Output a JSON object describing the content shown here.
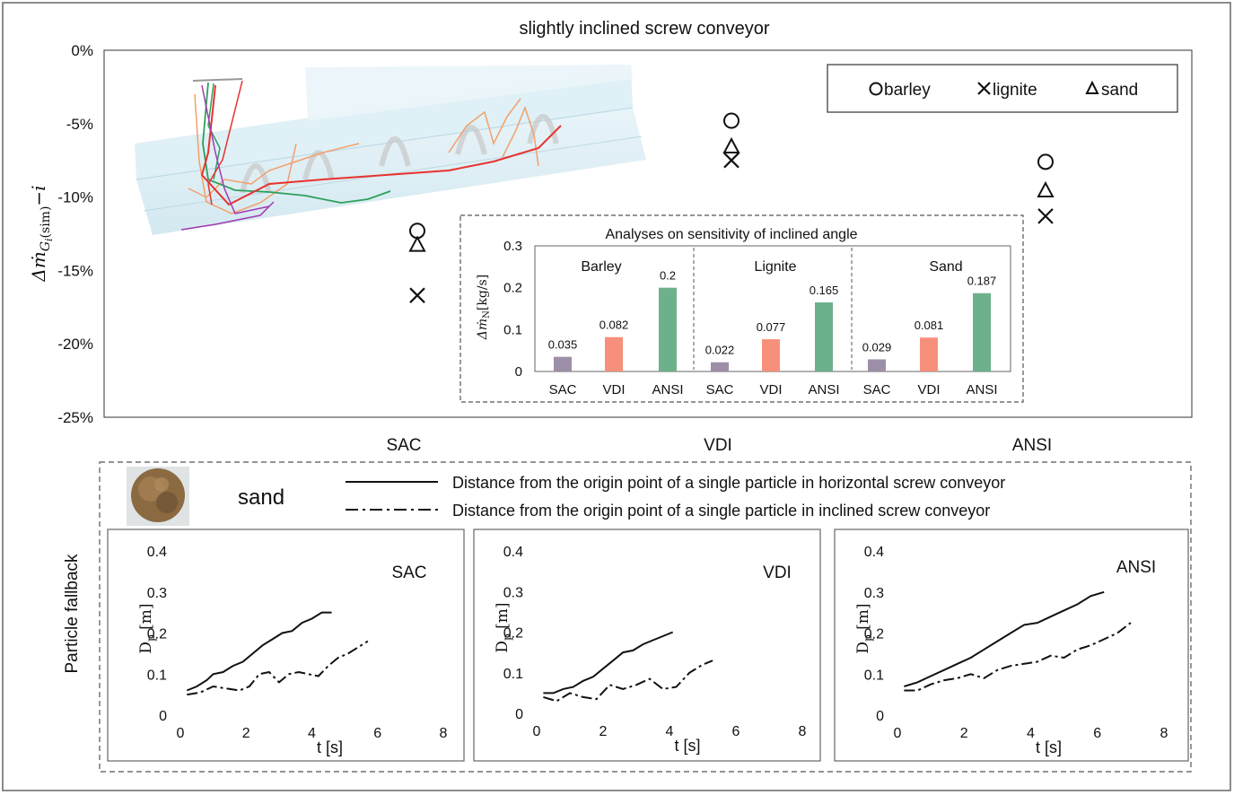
{
  "figure": {
    "title": "slightly inclined screw conveyor",
    "fallback_label": "Particle fallback"
  },
  "main_chart": {
    "ylabel": "Δṁ",
    "ylabel_sub": "G",
    "ylabel_subsub": "i",
    "ylabel_paren": "(sim)",
    "ylabel_suffix": "−i",
    "legend": [
      {
        "marker": "circle",
        "label": "barley"
      },
      {
        "marker": "cross",
        "label": "lignite"
      },
      {
        "marker": "triangle",
        "label": "sand"
      }
    ]
  },
  "inset": {
    "title": "Analyses on sensitivity of inclined angle",
    "ylabel": "Δṁ",
    "ylabel_sub": "N",
    "ylabel_unit": "[kg/s]",
    "groups": [
      "Barley",
      "Lignite",
      "Sand"
    ]
  },
  "sand_legend": {
    "material": "sand",
    "solid": "Distance from the origin point of a single particle in horizontal screw conveyor",
    "dashdot": "Distance from the origin point of a single particle in inclined screw conveyor"
  },
  "subplot_axes": {
    "xlabel": "t [s]",
    "ylabel": "D",
    "ylabel_sub": "p",
    "ylabel_unit": " [m]"
  },
  "colors": {
    "SAC": "#9d8fa8",
    "VDI": "#f7907a",
    "ANSI": "#6db08c",
    "frame": "#555555"
  },
  "chart_data": [
    {
      "type": "scatter",
      "title": "slightly inclined screw conveyor",
      "categories": [
        "SAC",
        "VDI",
        "ANSI"
      ],
      "ylabel": "Δṁ_Gi(sim)−i",
      "ylim": [
        -25,
        0
      ],
      "yticks": [
        0,
        -5,
        -10,
        -15,
        -20,
        -25
      ],
      "ytick_labels": [
        "0%",
        "-5%",
        "-10%",
        "-15%",
        "-20%",
        "-25%"
      ],
      "legend_placement": "top-right",
      "series": [
        {
          "name": "barley",
          "marker": "circle",
          "values": [
            -12.3,
            -4.8,
            -7.6
          ]
        },
        {
          "name": "lignite",
          "marker": "cross",
          "values": [
            -16.7,
            -7.5,
            -11.3
          ]
        },
        {
          "name": "sand",
          "marker": "triangle",
          "values": [
            -13.3,
            -6.6,
            -9.6
          ]
        }
      ]
    },
    {
      "type": "bar",
      "title": "Analyses on sensitivity of inclined angle",
      "ylabel": "Δṁ_N[kg/s]",
      "ylim": [
        0,
        0.3
      ],
      "yticks": [
        0,
        0.1,
        0.2,
        0.3
      ],
      "ytick_labels": [
        "0",
        "0.1",
        "0.2",
        "0.3"
      ],
      "groups": [
        "Barley",
        "Lignite",
        "Sand"
      ],
      "categories": [
        "SAC",
        "VDI",
        "ANSI",
        "SAC",
        "VDI",
        "ANSI",
        "SAC",
        "VDI",
        "ANSI"
      ],
      "values": [
        0.035,
        0.082,
        0.2,
        0.022,
        0.077,
        0.165,
        0.029,
        0.081,
        0.187
      ],
      "labels": [
        "0.035",
        "0.082",
        "0.2",
        "0.022",
        "0.077",
        "0.165",
        "0.029",
        "0.081",
        "0.187"
      ]
    },
    {
      "type": "line",
      "title": "SAC",
      "xlabel": "t [s]",
      "ylabel": "D_p [m]",
      "xlim": [
        0,
        8
      ],
      "ylim": [
        0,
        0.4
      ],
      "xticks": [
        0,
        2,
        4,
        6,
        8
      ],
      "xtick_labels": [
        "0",
        "2",
        "4",
        "6",
        "8"
      ],
      "yticks": [
        0,
        0.1,
        0.2,
        0.3,
        0.4
      ],
      "ytick_labels": [
        "0",
        "0.1",
        "0.2",
        "0.3",
        "0.4"
      ],
      "series": [
        {
          "style": "solid",
          "x": [
            0.2,
            0.5,
            0.8,
            1.0,
            1.3,
            1.6,
            1.9,
            2.2,
            2.5,
            2.8,
            3.1,
            3.4,
            3.7,
            4.0,
            4.3,
            4.6
          ],
          "y": [
            0.06,
            0.07,
            0.085,
            0.1,
            0.105,
            0.12,
            0.13,
            0.15,
            0.17,
            0.185,
            0.2,
            0.205,
            0.225,
            0.235,
            0.25,
            0.25
          ]
        },
        {
          "style": "dashdot",
          "x": [
            0.2,
            0.6,
            1.0,
            1.4,
            1.8,
            2.1,
            2.4,
            2.7,
            3.0,
            3.3,
            3.6,
            3.9,
            4.2,
            4.5,
            4.8,
            5.1,
            5.4,
            5.7
          ],
          "y": [
            0.05,
            0.055,
            0.07,
            0.065,
            0.06,
            0.07,
            0.1,
            0.105,
            0.08,
            0.1,
            0.105,
            0.1,
            0.095,
            0.12,
            0.14,
            0.15,
            0.165,
            0.18
          ]
        }
      ]
    },
    {
      "type": "line",
      "title": "VDI",
      "xlabel": "t [s]",
      "ylabel": "D_p [m]",
      "xlim": [
        0,
        8
      ],
      "ylim": [
        0,
        0.4
      ],
      "xticks": [
        0,
        2,
        4,
        6,
        8
      ],
      "xtick_labels": [
        "0",
        "2",
        "4",
        "6",
        "8"
      ],
      "yticks": [
        0,
        0.1,
        0.2,
        0.3,
        0.4
      ],
      "ytick_labels": [
        "0",
        "0.1",
        "0.2",
        "0.3",
        "0.4"
      ],
      "series": [
        {
          "style": "solid",
          "x": [
            0.2,
            0.5,
            0.8,
            1.1,
            1.4,
            1.7,
            2.0,
            2.3,
            2.6,
            2.9,
            3.2,
            3.5,
            3.8,
            4.1
          ],
          "y": [
            0.05,
            0.05,
            0.06,
            0.065,
            0.08,
            0.09,
            0.11,
            0.13,
            0.15,
            0.155,
            0.17,
            0.18,
            0.19,
            0.2
          ]
        },
        {
          "style": "dashdot",
          "x": [
            0.2,
            0.6,
            1.0,
            1.4,
            1.8,
            2.2,
            2.6,
            3.0,
            3.4,
            3.8,
            4.2,
            4.6,
            5.0,
            5.3
          ],
          "y": [
            0.04,
            0.03,
            0.05,
            0.04,
            0.035,
            0.07,
            0.06,
            0.07,
            0.085,
            0.06,
            0.065,
            0.1,
            0.12,
            0.13
          ]
        }
      ]
    },
    {
      "type": "line",
      "title": "ANSI",
      "xlabel": "t [s]",
      "ylabel": "D_p [m]",
      "xlim": [
        0,
        8
      ],
      "ylim": [
        0,
        0.4
      ],
      "xticks": [
        0,
        2,
        4,
        6,
        8
      ],
      "xtick_labels": [
        "0",
        "2",
        "4",
        "6",
        "8"
      ],
      "yticks": [
        0,
        0.1,
        0.2,
        0.3,
        0.4
      ],
      "ytick_labels": [
        "0",
        "0.1",
        "0.2",
        "0.3",
        "0.4"
      ],
      "series": [
        {
          "style": "solid",
          "x": [
            0.2,
            0.6,
            1.0,
            1.4,
            1.8,
            2.2,
            2.6,
            3.0,
            3.4,
            3.8,
            4.2,
            4.6,
            5.0,
            5.4,
            5.8,
            6.2
          ],
          "y": [
            0.07,
            0.08,
            0.095,
            0.11,
            0.125,
            0.14,
            0.16,
            0.18,
            0.2,
            0.22,
            0.225,
            0.24,
            0.255,
            0.27,
            0.29,
            0.3
          ]
        },
        {
          "style": "dashdot",
          "x": [
            0.2,
            0.6,
            1.0,
            1.4,
            1.8,
            2.2,
            2.6,
            3.0,
            3.4,
            3.8,
            4.2,
            4.6,
            5.0,
            5.4,
            5.8,
            6.2,
            6.6,
            7.0
          ],
          "y": [
            0.06,
            0.06,
            0.075,
            0.085,
            0.09,
            0.1,
            0.09,
            0.11,
            0.12,
            0.125,
            0.13,
            0.145,
            0.14,
            0.16,
            0.17,
            0.185,
            0.2,
            0.225
          ]
        }
      ]
    }
  ]
}
